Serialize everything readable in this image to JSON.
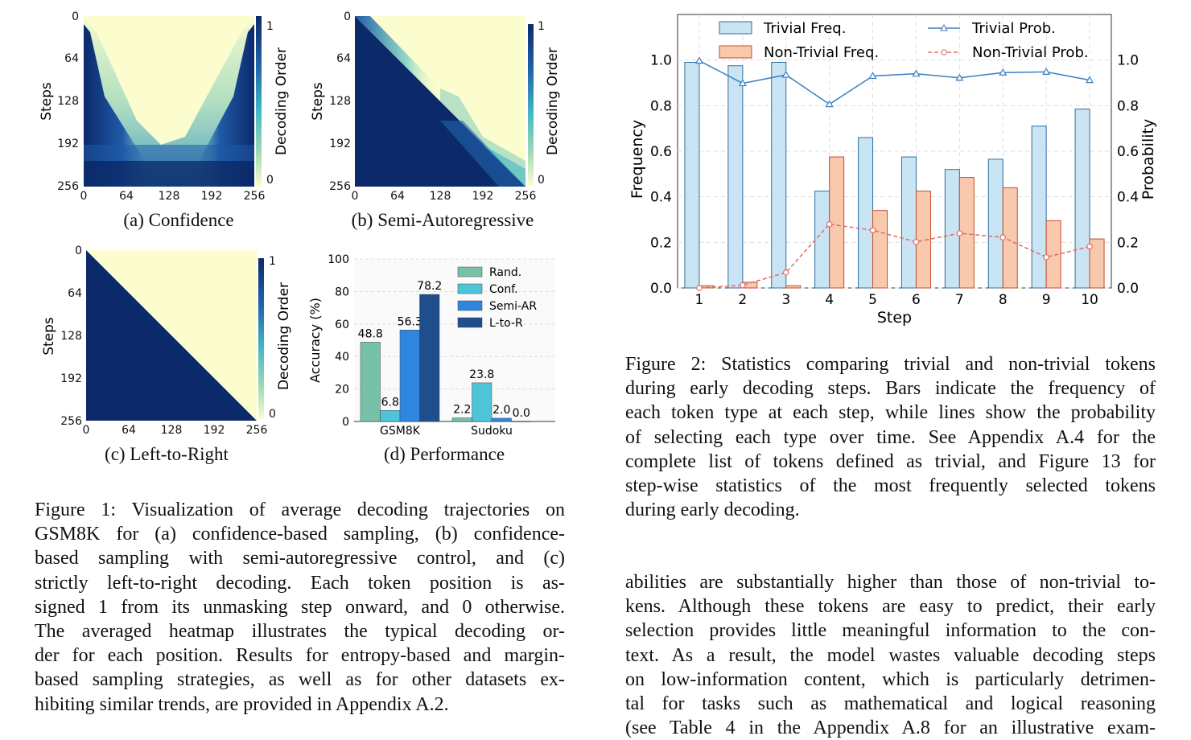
{
  "fig1": {
    "heatmaps": [
      {
        "id": "a",
        "caption": "(a) Confidence",
        "ylabel": "Steps",
        "cbar_label": "Decoding Order",
        "cbar_ticks": [
          "1",
          "0"
        ]
      },
      {
        "id": "b",
        "caption": "(b) Semi-Autoregressive",
        "ylabel": "Steps",
        "cbar_label": "Decoding Order",
        "cbar_ticks": [
          "1",
          "0"
        ]
      },
      {
        "id": "c",
        "caption": "(c) Left-to-Right",
        "ylabel": "Steps",
        "cbar_label": "Decoding Order",
        "cbar_ticks": [
          "1",
          "0"
        ]
      }
    ],
    "axis_ticks": [
      "0",
      "64",
      "128",
      "192",
      "256"
    ],
    "perf_caption": "(d) Performance",
    "caption_lines": [
      "Figure 1: Visualization of average decoding trajectories on",
      "GSM8K for (a) confidence-based sampling, (b) confidence-",
      "based sampling with semi-autoregressive control, and (c)",
      "strictly left-to-right decoding. Each token position is as-",
      "signed 1 from its unmasking step onward, and 0 otherwise.",
      "The averaged heatmap illustrates the typical decoding or-",
      "der for each position. Results for entropy-based and margin-",
      "based sampling strategies, as well as for other datasets ex-",
      "hibiting similar trends, are provided in Appendix A.2."
    ]
  },
  "fig2": {
    "caption_lines": [
      "Figure 2: Statistics comparing trivial and non-trivial tokens",
      "during early decoding steps. Bars indicate the frequency of",
      "each token type at each step, while lines show the probability",
      "of selecting each type over time. See Appendix A.4 for the",
      "complete list of tokens defined as trivial, and Figure 13 for",
      "step-wise statistics of the most frequently selected tokens",
      "during early decoding."
    ]
  },
  "body_text": {
    "lines": [
      "abilities are substantially higher than those of non-trivial to-",
      "kens. Although these tokens are easy to predict, their early",
      "selection provides little meaningful information to the con-",
      "text. As a result, the model wastes valuable decoding steps",
      "on low-information content, which is particularly detrimen-",
      "tal for tasks such as mathematical and logical reasoning",
      "(see Table 4 in the Appendix A.8 for an illustrative exam-"
    ]
  },
  "chart_data": [
    {
      "type": "bar",
      "title": "(d) Performance",
      "ylabel": "Accuracy (%)",
      "xlabel": "",
      "ylim": [
        0,
        100
      ],
      "yticks": [
        0,
        20,
        40,
        60,
        80,
        100
      ],
      "categories": [
        "GSM8K",
        "Sudoku"
      ],
      "series": [
        {
          "name": "Rand.",
          "color": "#76c1a8",
          "values": [
            48.8,
            2.2
          ],
          "labels": [
            "48.8",
            "2.2"
          ]
        },
        {
          "name": "Conf.",
          "color": "#4ec4d9",
          "values": [
            6.8,
            23.8
          ],
          "labels": [
            "6.8",
            "23.8"
          ]
        },
        {
          "name": "Semi-AR",
          "color": "#2e86de",
          "values": [
            56.3,
            2.0
          ],
          "labels": [
            "56.3",
            "2.0"
          ]
        },
        {
          "name": "L-to-R",
          "color": "#1f4e8c",
          "values": [
            78.2,
            0.0
          ],
          "labels": [
            "78.2",
            "0.0"
          ]
        }
      ],
      "legend": "top-right"
    },
    {
      "type": "bar",
      "title": "",
      "xlabel": "Step",
      "ylabel": "Frequency",
      "y2label": "Probability",
      "ylim": [
        0,
        1.2
      ],
      "yticks": [
        0.0,
        0.2,
        0.4,
        0.6,
        0.8,
        1.0
      ],
      "ytick_labels": [
        "0.0",
        "0.2",
        "0.4",
        "0.6",
        "0.8",
        "1.0"
      ],
      "categories": [
        "1",
        "2",
        "3",
        "4",
        "5",
        "6",
        "7",
        "8",
        "9",
        "10"
      ],
      "series": [
        {
          "name": "Trivial Freq.",
          "kind": "bar",
          "color": "#c9e4f2",
          "edge": "#2f6f9f",
          "values": [
            0.99,
            0.975,
            0.99,
            0.425,
            0.66,
            0.575,
            0.52,
            0.565,
            0.71,
            0.785
          ]
        },
        {
          "name": "Non-Trivial Freq.",
          "kind": "bar",
          "color": "#f8c9ad",
          "edge": "#c0502d",
          "values": [
            0.01,
            0.025,
            0.01,
            0.575,
            0.34,
            0.425,
            0.485,
            0.44,
            0.295,
            0.215
          ]
        },
        {
          "name": "Trivial Prob.",
          "kind": "line",
          "color": "#3a7fc0",
          "values": [
            0.997,
            0.898,
            0.935,
            0.806,
            0.93,
            0.94,
            0.922,
            0.945,
            0.948,
            0.912
          ]
        },
        {
          "name": "Non-Trivial Prob.",
          "kind": "line",
          "color": "#e06b6b",
          "values": [
            0.0,
            0.012,
            0.068,
            0.28,
            0.253,
            0.202,
            0.24,
            0.222,
            0.135,
            0.182
          ]
        }
      ],
      "legend": "top"
    }
  ]
}
